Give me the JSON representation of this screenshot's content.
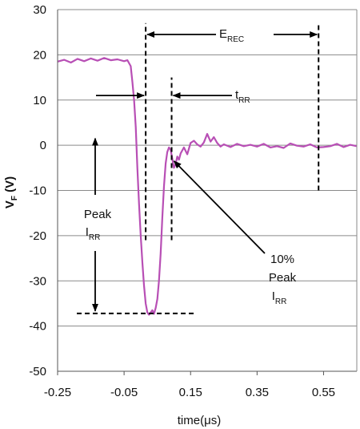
{
  "chart_data": {
    "type": "line",
    "title": "",
    "xlabel": "time(μs)",
    "ylabel": {
      "main": "V",
      "sub": "F",
      "unit": " (V)"
    },
    "xlim": [
      -0.25,
      0.65
    ],
    "ylim": [
      -50,
      30
    ],
    "x_ticks": [
      -0.25,
      -0.05,
      0.15,
      0.35,
      0.55
    ],
    "x_tick_labels": [
      "-0.25",
      "-0.05",
      "0.15",
      "0.35",
      "0.55"
    ],
    "y_ticks": [
      30,
      20,
      10,
      0,
      -10,
      -20,
      -30,
      -40,
      -50
    ],
    "y_tick_labels": [
      "30",
      "20",
      "10",
      "0",
      "-10",
      "-20",
      "-30",
      "-40",
      "-50"
    ],
    "grid": "horizontal",
    "series": [
      {
        "name": "",
        "color": "#b84fb5",
        "x": [
          -0.25,
          -0.23,
          -0.21,
          -0.19,
          -0.17,
          -0.15,
          -0.13,
          -0.11,
          -0.09,
          -0.07,
          -0.05,
          -0.04,
          -0.03,
          -0.025,
          -0.02,
          -0.015,
          -0.01,
          -0.005,
          0.0,
          0.005,
          0.01,
          0.015,
          0.02,
          0.025,
          0.03,
          0.035,
          0.04,
          0.045,
          0.05,
          0.055,
          0.06,
          0.065,
          0.07,
          0.075,
          0.08,
          0.085,
          0.09,
          0.095,
          0.1,
          0.105,
          0.11,
          0.115,
          0.12,
          0.13,
          0.14,
          0.15,
          0.16,
          0.17,
          0.18,
          0.19,
          0.2,
          0.21,
          0.22,
          0.23,
          0.24,
          0.25,
          0.27,
          0.29,
          0.31,
          0.33,
          0.35,
          0.37,
          0.39,
          0.41,
          0.43,
          0.45,
          0.47,
          0.49,
          0.51,
          0.53,
          0.55,
          0.57,
          0.59,
          0.61,
          0.63,
          0.65
        ],
        "y": [
          18.5,
          18.9,
          18.3,
          19.1,
          18.6,
          19.2,
          18.7,
          19.3,
          18.8,
          19.0,
          18.6,
          18.8,
          17.5,
          14,
          10,
          4,
          -5,
          -13,
          -20,
          -26,
          -31,
          -35,
          -37,
          -37.5,
          -37,
          -36.5,
          -37.3,
          -36,
          -34,
          -30,
          -24,
          -16,
          -9,
          -4,
          -1.5,
          -0.5,
          -1,
          -3,
          -5,
          -4.2,
          -2.5,
          -3.2,
          -1.8,
          -0.5,
          -2,
          0.5,
          1,
          0.2,
          -0.3,
          0.6,
          2.5,
          0.8,
          1.8,
          0.5,
          -0.3,
          0.2,
          -0.4,
          0.3,
          -0.2,
          0.1,
          -0.3,
          0.3,
          -0.5,
          -0.2,
          -0.6,
          0.4,
          -0.1,
          -0.3,
          0.2,
          -0.5,
          -0.4,
          -0.2,
          0.3,
          -0.4,
          0.1,
          -0.2
        ]
      }
    ],
    "annotations": [
      {
        "id": "erec",
        "main": "E",
        "sub": "REC"
      },
      {
        "id": "trr",
        "main": "t",
        "sub": "RR"
      },
      {
        "id": "peak-irr",
        "line1": "Peak",
        "main": "I",
        "sub": "RR"
      },
      {
        "id": "pct10",
        "line1": "10%",
        "line2": "Peak",
        "main": "I",
        "sub": "RR"
      }
    ],
    "markers": {
      "erec_start_x": 0.015,
      "erec_end_x": 0.535,
      "trr_end_x": 0.093,
      "peak_y": -37.2,
      "erec_line_y": [
        -21,
        27
      ],
      "erec_end_line_y": [
        -10,
        27
      ],
      "trr_line_y": [
        -21,
        15
      ]
    }
  }
}
